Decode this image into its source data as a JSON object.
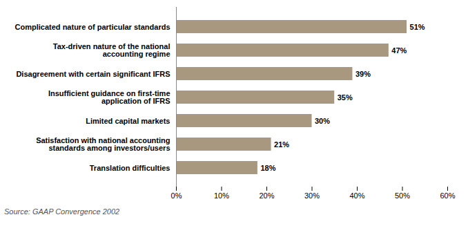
{
  "chart_data": {
    "type": "bar",
    "orientation": "horizontal",
    "categories": [
      "Translation difficulties",
      "Satisfaction with national accounting\nstandards among investors/users",
      "Limited capital markets",
      "Insufficient guidance on first-time\napplication of IFRS",
      "Disagreement with certain significant IFRS",
      "Tax-driven nature of the national\naccounting regime",
      "Complicated nature of particular standards"
    ],
    "values": [
      18,
      21,
      30,
      35,
      39,
      47,
      51
    ],
    "value_labels": [
      "18%",
      "21%",
      "30%",
      "35%",
      "39%",
      "47%",
      "51%"
    ],
    "data_labels": true,
    "color": "#a89880",
    "xlim": [
      0,
      60
    ],
    "xticks": [
      {
        "value": 0,
        "label": "0%"
      },
      {
        "value": 10,
        "label": "10%"
      },
      {
        "value": 20,
        "label": "20%"
      },
      {
        "value": 30,
        "label": "30%"
      },
      {
        "value": 40,
        "label": "40%"
      },
      {
        "value": 50,
        "label": "50%"
      },
      {
        "value": 60,
        "label": "60%"
      }
    ],
    "annotations": [
      "Source: GAAP Convergence 2002"
    ]
  }
}
